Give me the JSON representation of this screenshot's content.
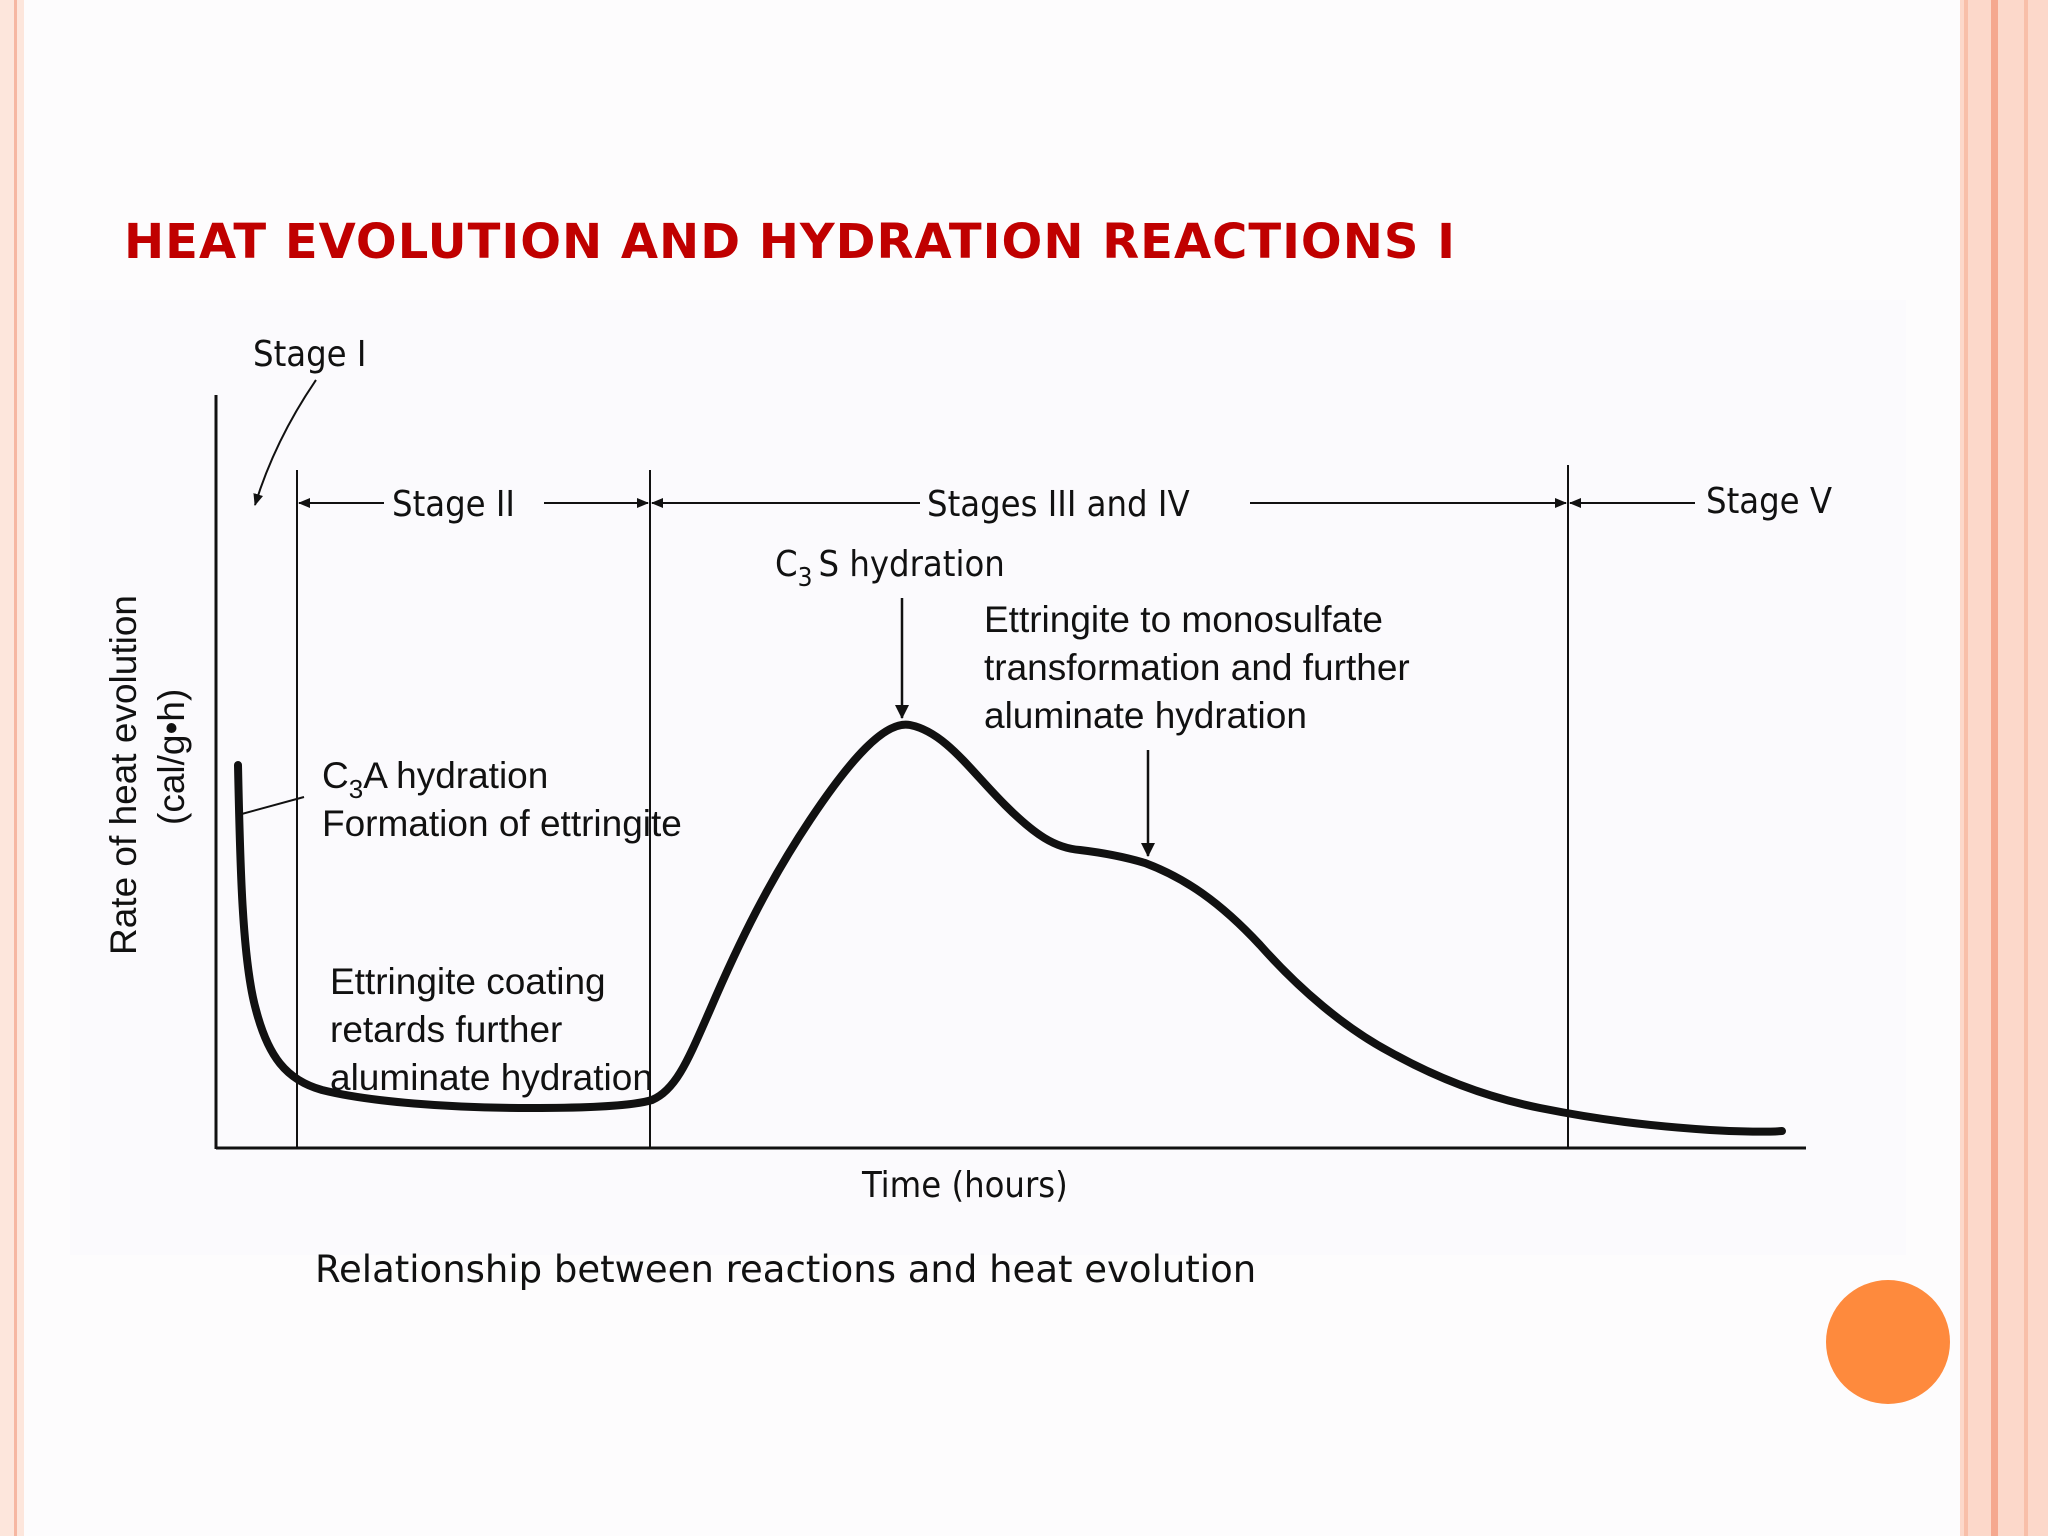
{
  "slide": {
    "title": "HEAT EVOLUTION AND HYDRATION REACTIONS I",
    "caption": "Relationship between reactions and heat evolution"
  },
  "colors": {
    "title": "#c00000",
    "accent_circle": "#fe8a3d",
    "border": "#f5a88f"
  },
  "diagram": {
    "y_axis_label": "Rate of heat evolution",
    "y_axis_unit": "(cal/g•h)",
    "x_axis_label": "Time (hours)",
    "stages": {
      "stage_1": "Stage I",
      "stage_2": "Stage II",
      "stage_3_4": "Stages III and IV",
      "stage_5": "Stage V"
    },
    "annotations": {
      "c3s_prefix": "C",
      "c3s_sub": "3",
      "c3s_suffix": "S hydration",
      "ettringite_mono_1": "Ettringite to monosulfate",
      "ettringite_mono_2": "transformation and further",
      "ettringite_mono_3": "aluminate hydration",
      "c3a_prefix": "C",
      "c3a_sub": "3",
      "c3a_suffix": "A hydration",
      "c3a_2": "Formation of ettringite",
      "coating_1": "Ettringite coating",
      "coating_2": "retards further",
      "coating_3": "aluminate hydration"
    }
  }
}
